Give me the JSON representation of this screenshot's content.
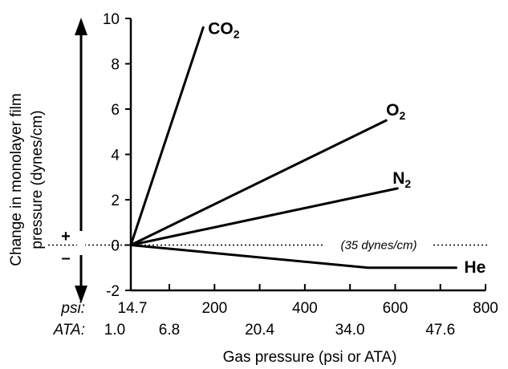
{
  "chart_data": {
    "type": "line",
    "title": "",
    "xlabel": "Gas pressure (psi or ATA)",
    "ylabel_line1": "Change in monolayer film",
    "ylabel_line2": "pressure (dynes/cm)",
    "ylim": [
      -2,
      10
    ],
    "yticks": [
      -2,
      0,
      2,
      4,
      6,
      8,
      10
    ],
    "xlim": [
      14.7,
      800
    ],
    "psi_prefix": "psi:",
    "ata_prefix": "ATA:",
    "psi_ticks": [
      {
        "value": 14.7,
        "label": "14.7"
      },
      {
        "value": 200,
        "label": "200"
      },
      {
        "value": 400,
        "label": "400"
      },
      {
        "value": 600,
        "label": "600"
      },
      {
        "value": 800,
        "label": "800"
      }
    ],
    "minor_ticks": [
      100,
      300,
      500,
      700
    ],
    "ata_ticks": [
      {
        "value": 14.7,
        "label": "1.0"
      },
      {
        "value": 100,
        "label": "6.8"
      },
      {
        "value": 300,
        "label": "20.4"
      },
      {
        "value": 500,
        "label": "34.0"
      },
      {
        "value": 700,
        "label": "47.6"
      }
    ],
    "series": [
      {
        "name": "CO",
        "sub": "2",
        "points": [
          [
            14.7,
            0
          ],
          [
            175,
            9.6
          ]
        ]
      },
      {
        "name": "O",
        "sub": "2",
        "points": [
          [
            14.7,
            0
          ],
          [
            580,
            5.5
          ]
        ]
      },
      {
        "name": "N",
        "sub": "2",
        "points": [
          [
            14.7,
            0
          ],
          [
            605,
            2.5
          ]
        ]
      },
      {
        "name": "He",
        "sub": "",
        "points": [
          [
            14.7,
            0
          ],
          [
            540,
            -1.0
          ],
          [
            735,
            -1.0
          ]
        ]
      }
    ],
    "reference_line": {
      "y": 0,
      "label": "(35 dynes/cm)"
    },
    "sign_plus": "+",
    "sign_minus": "–"
  }
}
